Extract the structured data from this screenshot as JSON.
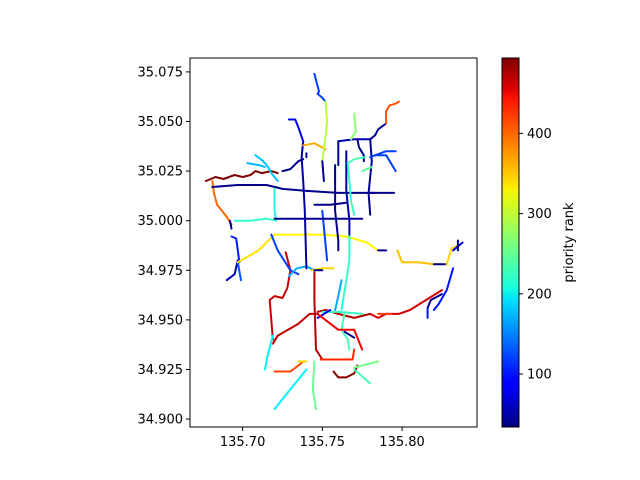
{
  "chart_data": {
    "type": "line",
    "title": "",
    "xlabel": "",
    "ylabel": "",
    "xlim": [
      135.667,
      135.847
    ],
    "ylim": [
      34.896,
      35.082
    ],
    "xticks": [
      135.7,
      135.75,
      135.8
    ],
    "xtick_labels": [
      "135.70",
      "135.75",
      "135.80"
    ],
    "yticks": [
      34.9,
      34.925,
      34.95,
      34.975,
      35.0,
      35.025,
      35.05,
      35.075
    ],
    "ytick_labels": [
      "34.900",
      "34.925",
      "34.950",
      "34.975",
      "35.000",
      "35.025",
      "35.050",
      "35.075"
    ],
    "grid": false,
    "colormap": "jet",
    "colorbar": {
      "label": "priority rank",
      "vmin": 34,
      "vmax": 494,
      "ticks": [
        100,
        200,
        300,
        400
      ],
      "tick_labels": [
        "100",
        "200",
        "300",
        "400"
      ]
    },
    "series": [
      {
        "rank": 494,
        "x": [
          135.677,
          135.683,
          135.688,
          135.695,
          135.7,
          135.705,
          135.708,
          135.712,
          135.718,
          135.722
        ],
        "y": [
          35.02,
          35.022,
          35.021,
          35.023,
          35.022,
          35.023,
          35.025,
          35.024,
          35.025,
          35.024
        ]
      },
      {
        "rank": 390,
        "x": [
          135.681,
          135.682,
          135.684,
          135.686,
          135.69,
          135.693
        ],
        "y": [
          35.02,
          35.014,
          35.008,
          35.006,
          35.002,
          34.998
        ]
      },
      {
        "rank": 40,
        "x": [
          135.681,
          135.697,
          135.715,
          135.725,
          135.74,
          135.76,
          135.783
        ],
        "y": [
          35.017,
          35.018,
          35.018,
          35.016,
          35.015,
          35.014,
          35.014
        ]
      },
      {
        "rank": 180,
        "x": [
          135.708,
          135.713,
          135.716,
          135.718,
          135.722
        ],
        "y": [
          35.033,
          35.03,
          35.027,
          35.024,
          35.02
        ]
      },
      {
        "rank": 175,
        "x": [
          135.703,
          135.71,
          135.714
        ],
        "y": [
          35.029,
          35.028,
          35.027
        ]
      },
      {
        "rank": 220,
        "x": [
          135.72,
          135.72,
          135.721
        ],
        "y": [
          35.016,
          35.005,
          35.0
        ]
      },
      {
        "rank": 230,
        "x": [
          135.695,
          135.705,
          135.715,
          135.721
        ],
        "y": [
          35.0,
          35.0,
          35.001,
          35.0
        ]
      },
      {
        "rank": 40,
        "x": [
          135.692,
          135.693
        ],
        "y": [
          35.0,
          34.996
        ]
      },
      {
        "rank": 105,
        "x": [
          135.693,
          135.696,
          135.697,
          135.698
        ],
        "y": [
          34.992,
          34.991,
          34.985,
          34.979
        ]
      },
      {
        "rank": 60,
        "x": [
          135.697,
          135.695,
          135.69
        ],
        "y": [
          34.98,
          34.973,
          34.97
        ]
      },
      {
        "rank": 130,
        "x": [
          135.697,
          135.699
        ],
        "y": [
          34.979,
          34.97
        ]
      },
      {
        "rank": 335,
        "x": [
          135.697,
          135.71,
          135.72
        ],
        "y": [
          34.979,
          34.985,
          34.993
        ]
      },
      {
        "rank": 325,
        "x": [
          135.72,
          135.735,
          135.75,
          135.765,
          135.778,
          135.785
        ],
        "y": [
          34.993,
          34.993,
          34.993,
          34.992,
          34.989,
          34.985
        ]
      },
      {
        "rank": 40,
        "x": [
          135.785,
          135.79
        ],
        "y": [
          34.985,
          34.985
        ]
      },
      {
        "rank": 350,
        "x": [
          135.797,
          135.8,
          135.81,
          135.82,
          135.825
        ],
        "y": [
          34.985,
          34.979,
          34.979,
          34.978,
          34.978
        ]
      },
      {
        "rank": 40,
        "x": [
          135.82,
          135.828
        ],
        "y": [
          34.978,
          34.978
        ]
      },
      {
        "rank": 340,
        "x": [
          135.828,
          135.831,
          135.836
        ],
        "y": [
          34.978,
          34.986,
          34.988
        ]
      },
      {
        "rank": 80,
        "x": [
          135.832,
          135.838
        ],
        "y": [
          34.985,
          34.989
        ]
      },
      {
        "rank": 40,
        "x": [
          135.835,
          135.835
        ],
        "y": [
          34.99,
          34.985
        ]
      },
      {
        "rank": 100,
        "x": [
          135.832,
          135.828,
          135.823,
          135.82
        ],
        "y": [
          34.976,
          34.965,
          34.958,
          34.955
        ]
      },
      {
        "rank": 40,
        "x": [
          135.816,
          135.818,
          135.825
        ],
        "y": [
          34.956,
          34.96,
          34.963
        ]
      },
      {
        "rank": 100,
        "x": [
          135.816,
          135.816
        ],
        "y": [
          34.956,
          34.951
        ]
      },
      {
        "rank": 455,
        "x": [
          135.825,
          135.815,
          135.805,
          135.798,
          135.79,
          135.785,
          135.78
        ],
        "y": [
          34.965,
          34.96,
          34.955,
          34.953,
          34.953,
          34.951,
          34.953
        ]
      },
      {
        "rank": 470,
        "x": [
          135.78,
          135.77,
          135.76,
          135.752,
          135.747
        ],
        "y": [
          34.953,
          34.951,
          34.953,
          34.955,
          34.954
        ]
      },
      {
        "rank": 410,
        "x": [
          135.785,
          135.793
        ],
        "y": [
          34.953,
          34.953
        ]
      },
      {
        "rank": 230,
        "x": [
          135.75,
          135.76,
          135.775
        ],
        "y": [
          34.954,
          34.954,
          34.953
        ]
      },
      {
        "rank": 90,
        "x": [
          135.747,
          135.755
        ],
        "y": [
          34.951,
          34.955
        ]
      },
      {
        "rank": 240,
        "x": [
          135.764,
          135.762,
          135.766,
          135.767
        ],
        "y": [
          34.954,
          34.945,
          34.94,
          34.935
        ]
      },
      {
        "rank": 40,
        "x": [
          135.764,
          135.77
        ],
        "y": [
          34.944,
          34.941
        ]
      },
      {
        "rank": 440,
        "x": [
          135.747,
          135.76,
          135.77,
          135.775
        ],
        "y": [
          34.953,
          34.945,
          34.945,
          34.935
        ]
      },
      {
        "rank": 460,
        "x": [
          135.727,
          135.73,
          135.728,
          135.725,
          135.72,
          135.717,
          135.719
        ],
        "y": [
          34.984,
          34.975,
          34.966,
          34.961,
          34.962,
          34.96,
          34.94
        ]
      },
      {
        "rank": 465,
        "x": [
          135.719,
          135.722,
          135.735,
          135.742,
          135.747
        ],
        "y": [
          34.938,
          34.942,
          34.948,
          34.953,
          34.953
        ]
      },
      {
        "rank": 470,
        "x": [
          135.745,
          135.745,
          135.746,
          135.75
        ],
        "y": [
          34.974,
          34.96,
          34.935,
          34.93
        ]
      },
      {
        "rank": 420,
        "x": [
          135.749,
          135.76,
          135.769,
          135.77
        ],
        "y": [
          34.93,
          34.93,
          34.93,
          34.935
        ]
      },
      {
        "rank": 490,
        "x": [
          135.757,
          135.76,
          135.765,
          135.77,
          135.772
        ],
        "y": [
          34.924,
          34.921,
          34.921,
          34.923,
          34.927
        ]
      },
      {
        "rank": 255,
        "x": [
          135.745,
          135.744,
          135.746
        ],
        "y": [
          34.929,
          34.915,
          34.905
        ]
      },
      {
        "rank": 405,
        "x": [
          135.72,
          135.73,
          135.735,
          135.738
        ],
        "y": [
          34.924,
          34.924,
          34.927,
          34.929
        ]
      },
      {
        "rank": 340,
        "x": [
          135.735,
          135.74
        ],
        "y": [
          34.929,
          34.929
        ]
      },
      {
        "rank": 200,
        "x": [
          135.74,
          135.73,
          135.72
        ],
        "y": [
          34.925,
          34.915,
          34.905
        ]
      },
      {
        "rank": 260,
        "x": [
          135.77,
          135.775,
          135.785
        ],
        "y": [
          34.926,
          34.927,
          34.929
        ]
      },
      {
        "rank": 240,
        "x": [
          135.77,
          135.78
        ],
        "y": [
          34.925,
          34.918
        ]
      },
      {
        "rank": 200,
        "x": [
          135.719,
          135.716,
          135.714
        ],
        "y": [
          34.942,
          34.933,
          34.925
        ]
      },
      {
        "rank": 120,
        "x": [
          135.718,
          135.722,
          135.73,
          135.735
        ],
        "y": [
          34.993,
          34.985,
          34.975,
          34.973
        ]
      },
      {
        "rank": 170,
        "x": [
          135.729,
          135.734,
          135.74,
          135.745
        ],
        "y": [
          34.972,
          34.976,
          34.977,
          34.975
        ]
      },
      {
        "rank": 340,
        "x": [
          135.743,
          135.75,
          135.757
        ],
        "y": [
          34.975,
          34.976,
          34.976
        ]
      },
      {
        "rank": 40,
        "x": [
          135.745,
          135.75
        ],
        "y": [
          34.975,
          34.975
        ]
      },
      {
        "rank": 230,
        "x": [
          135.767,
          135.767,
          135.765,
          135.762
        ],
        "y": [
          34.993,
          34.98,
          34.97,
          34.955
        ]
      },
      {
        "rank": 170,
        "x": [
          135.762,
          135.76,
          135.758
        ],
        "y": [
          34.97,
          34.962,
          34.955
        ]
      },
      {
        "rank": 50,
        "x": [
          135.738,
          135.737,
          135.738,
          135.739,
          135.74
        ],
        "y": [
          35.04,
          35.032,
          35.02,
          35.005,
          34.976
        ]
      },
      {
        "rank": 40,
        "x": [
          135.725,
          135.73,
          135.735,
          135.738
        ],
        "y": [
          35.025,
          35.026,
          35.03,
          35.031
        ]
      },
      {
        "rank": 45,
        "x": [
          135.74,
          135.74
        ],
        "y": [
          35.034,
          35.032
        ]
      },
      {
        "rank": 80,
        "x": [
          135.729,
          135.733,
          135.735,
          135.738
        ],
        "y": [
          35.051,
          35.051,
          35.047,
          35.04
        ]
      },
      {
        "rank": 360,
        "x": [
          135.738,
          135.745,
          135.752
        ],
        "y": [
          35.038,
          35.039,
          35.036
        ]
      },
      {
        "rank": 120,
        "x": [
          135.745,
          135.748,
          135.747
        ],
        "y": [
          35.074,
          35.065,
          35.064
        ]
      },
      {
        "rank": 120,
        "x": [
          135.747,
          135.75,
          135.752
        ],
        "y": [
          35.064,
          35.062,
          35.06
        ]
      },
      {
        "rank": 290,
        "x": [
          135.752,
          135.753,
          135.752,
          135.75
        ],
        "y": [
          35.06,
          35.05,
          35.042,
          35.03
        ]
      },
      {
        "rank": 45,
        "x": [
          135.75,
          135.751
        ],
        "y": [
          35.03,
          35.02
        ]
      },
      {
        "rank": 120,
        "x": [
          135.75,
          135.753
        ],
        "y": [
          35.005,
          34.98
        ]
      },
      {
        "rank": 40,
        "x": [
          135.72,
          135.74,
          135.76,
          135.775
        ],
        "y": [
          35.001,
          35.001,
          35.001,
          35.001
        ]
      },
      {
        "rank": 40,
        "x": [
          135.745,
          135.755,
          135.765
        ],
        "y": [
          35.008,
          35.008,
          35.009
        ]
      },
      {
        "rank": 40,
        "x": [
          135.758,
          135.758,
          135.76,
          135.76
        ],
        "y": [
          35.028,
          35.005,
          34.99,
          34.985
        ]
      },
      {
        "rank": 50,
        "x": [
          135.765,
          135.765,
          135.767,
          135.767
        ],
        "y": [
          35.035,
          35.015,
          35.0,
          34.993
        ]
      },
      {
        "rank": 45,
        "x": [
          135.76,
          135.76
        ],
        "y": [
          35.028,
          35.04
        ]
      },
      {
        "rank": 60,
        "x": [
          135.76,
          135.77,
          135.78
        ],
        "y": [
          35.04,
          35.041,
          35.041
        ]
      },
      {
        "rank": 270,
        "x": [
          135.77,
          135.771,
          135.768
        ],
        "y": [
          35.054,
          35.045,
          35.041
        ]
      },
      {
        "rank": 40,
        "x": [
          135.772,
          135.773,
          135.776,
          135.776
        ],
        "y": [
          35.041,
          35.037,
          35.033,
          35.03
        ]
      },
      {
        "rank": 240,
        "x": [
          135.766,
          135.77,
          135.777
        ],
        "y": [
          35.029,
          35.031,
          35.032
        ]
      },
      {
        "rank": 230,
        "x": [
          135.766,
          135.767,
          135.768,
          135.77
        ],
        "y": [
          35.029,
          35.02,
          35.01,
          35.003
        ]
      },
      {
        "rank": 45,
        "x": [
          135.78,
          135.783,
          135.785,
          135.79
        ],
        "y": [
          35.041,
          35.043,
          35.046,
          35.049
        ]
      },
      {
        "rank": 45,
        "x": [
          135.78,
          135.781,
          135.78,
          135.779,
          135.78
        ],
        "y": [
          35.041,
          35.03,
          35.022,
          35.014,
          35.003
        ]
      },
      {
        "rank": 120,
        "x": [
          135.78,
          135.79,
          135.796
        ],
        "y": [
          35.032,
          35.035,
          35.035
        ]
      },
      {
        "rank": 120,
        "x": [
          135.783,
          135.79,
          135.796
        ],
        "y": [
          35.033,
          35.033,
          35.025
        ]
      },
      {
        "rank": 40,
        "x": [
          135.779,
          135.785,
          135.795
        ],
        "y": [
          35.014,
          35.014,
          35.014
        ]
      },
      {
        "rank": 400,
        "x": [
          135.79,
          135.79,
          135.792,
          135.796,
          135.798
        ],
        "y": [
          35.049,
          35.055,
          35.058,
          35.059,
          35.06
        ]
      },
      {
        "rank": 250,
        "x": [
          135.775,
          135.781
        ],
        "y": [
          35.025,
          35.027
        ]
      }
    ]
  }
}
